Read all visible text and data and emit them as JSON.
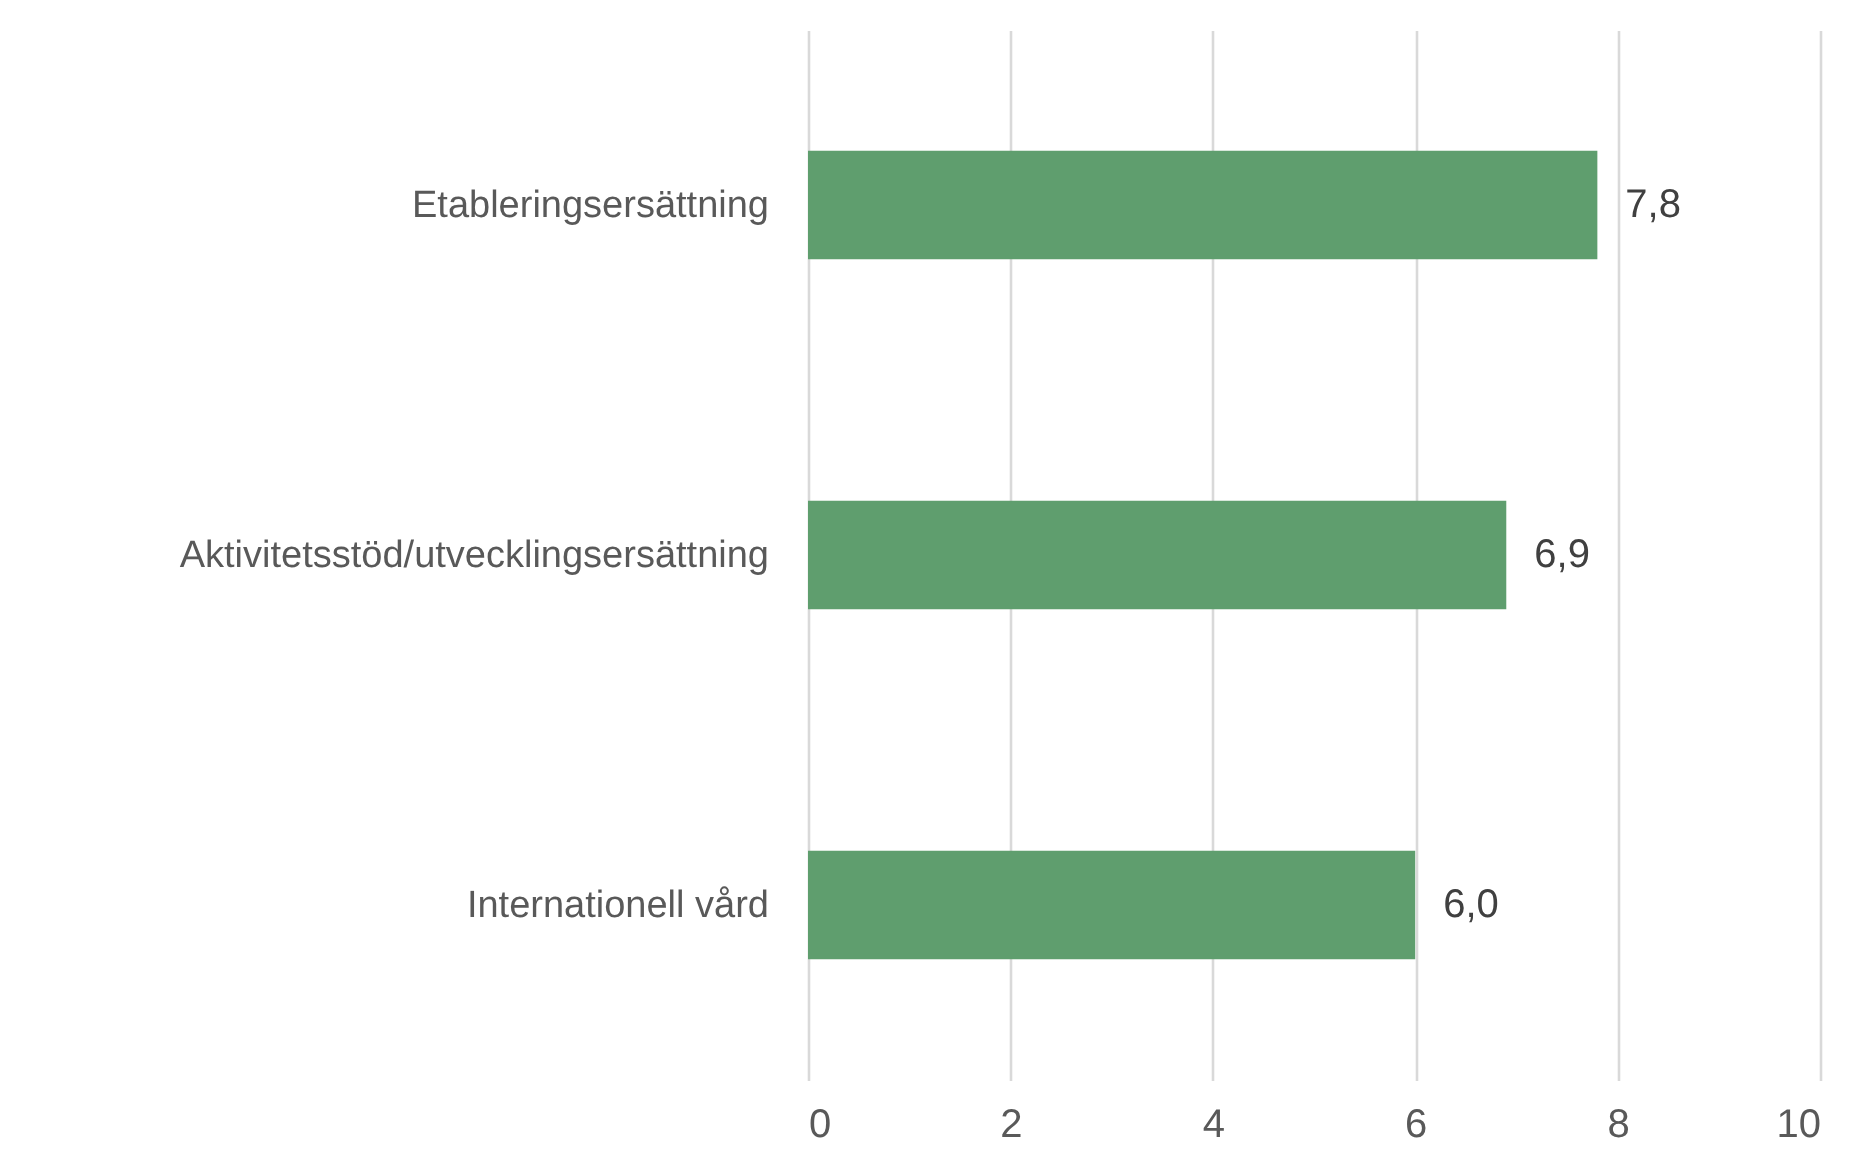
{
  "chart_data": {
    "type": "bar",
    "orientation": "horizontal",
    "categories": [
      "Etableringsersättning",
      "Aktivitetsstöd/utvecklingsersättning",
      "Internationell vård"
    ],
    "values": [
      7.8,
      6.9,
      6.0
    ],
    "value_labels": [
      "7,8",
      "6,9",
      "6,0"
    ],
    "color": "#5f9e6e",
    "xlim": [
      0,
      10
    ],
    "xticks": [
      0,
      2,
      4,
      6,
      8,
      10
    ],
    "grid": "x"
  }
}
